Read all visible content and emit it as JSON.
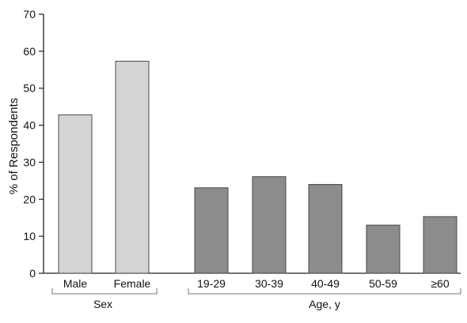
{
  "chart_data": {
    "type": "bar",
    "ylabel": "% of Respondents",
    "ylim": [
      0,
      70
    ],
    "yticks": [
      0,
      10,
      20,
      30,
      40,
      50,
      60,
      70
    ],
    "groups": [
      {
        "name": "Sex",
        "color": "#d4d4d4",
        "categories": [
          "Male",
          "Female"
        ],
        "values": [
          42.8,
          57.3
        ]
      },
      {
        "name": "Age, y",
        "color": "#8c8c8c",
        "categories": [
          "19-29",
          "30-39",
          "40-49",
          "50-59",
          "≥60"
        ],
        "values": [
          23.1,
          26.1,
          24.0,
          13.0,
          15.3
        ]
      }
    ],
    "grid": false
  }
}
